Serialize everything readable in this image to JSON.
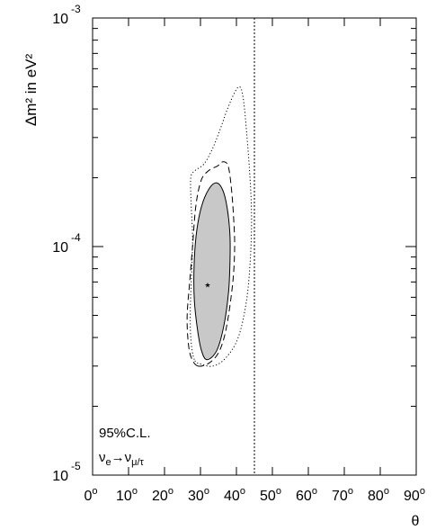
{
  "chart_data": {
    "type": "line",
    "title": "",
    "xlabel": "θ",
    "ylabel": "Δm² in eV²",
    "x_unit_symbol": "o",
    "xlim": [
      0,
      90
    ],
    "ylim": [
      1e-05,
      0.001
    ],
    "y_scale": "log",
    "grid": false,
    "x_ticks": [
      0,
      10,
      20,
      30,
      40,
      50,
      60,
      70,
      80,
      90
    ],
    "y_ticks": [
      {
        "value": 1e-05,
        "base": "10",
        "exponent": "-5"
      },
      {
        "value": 0.0001,
        "base": "10",
        "exponent": "-4"
      },
      {
        "value": 0.001,
        "base": "10",
        "exponent": "-3"
      }
    ],
    "annotations": {
      "confidence": "95%C.L.",
      "channel": {
        "nu": "ν",
        "from_sub": "e",
        "arrow": "→",
        "to_sub": "μ/τ"
      }
    },
    "best_fit": {
      "x": 32,
      "y": 6.8e-05,
      "symbol": "★"
    },
    "vertical_line": {
      "x": 45,
      "style": "dotted"
    },
    "series": [
      {
        "style": "solid-filled",
        "fill": "#c8c8c8",
        "points": [
          [
            31.8,
            3.2e-05
          ],
          [
            34.5,
            3.5e-05
          ],
          [
            36.5,
            4.5e-05
          ],
          [
            37.8,
            6.3e-05
          ],
          [
            38.2,
            8.5e-05
          ],
          [
            38.2,
            0.000112
          ],
          [
            37.5,
            0.000145
          ],
          [
            36.3,
            0.000175
          ],
          [
            34.5,
            0.00019
          ],
          [
            32.3,
            0.000178
          ],
          [
            30.2,
            0.000148
          ],
          [
            28.8,
            0.000112
          ],
          [
            28.2,
            8e-05
          ],
          [
            28.3,
            5.8e-05
          ],
          [
            29.2,
            4.3e-05
          ],
          [
            30.3,
            3.5e-05
          ]
        ]
      },
      {
        "style": "dashed",
        "points": [
          [
            29.3,
            3e-05
          ],
          [
            27.5,
            3.25e-05
          ],
          [
            26.6,
            3.8e-05
          ],
          [
            26.3,
            5e-05
          ],
          [
            27.0,
            7e-05
          ],
          [
            27.8,
            0.0001
          ],
          [
            28.7,
            0.00015
          ],
          [
            30.2,
            0.000195
          ],
          [
            32.3,
            0.000215
          ],
          [
            34.7,
            0.000225
          ],
          [
            36.3,
            0.000235
          ],
          [
            37.7,
            0.000225
          ],
          [
            38.6,
            0.00018
          ],
          [
            39.2,
            0.000135
          ],
          [
            39.5,
            0.0001
          ],
          [
            39.0,
            7e-05
          ],
          [
            37.3,
            4.5e-05
          ],
          [
            35.3,
            3.5e-05
          ],
          [
            32.5,
            3.1e-05
          ]
        ]
      },
      {
        "style": "dotted",
        "points": [
          [
            28.3,
            3.2e-05
          ],
          [
            27.3,
            4e-05
          ],
          [
            27.2,
            5.5e-05
          ],
          [
            27.6,
            8e-05
          ],
          [
            27.8,
            0.00011
          ],
          [
            27.4,
            0.000155
          ],
          [
            27.3,
            0.0002
          ],
          [
            28.5,
            0.000215
          ],
          [
            31.0,
            0.00023
          ],
          [
            33.2,
            0.000265
          ],
          [
            35.3,
            0.00032
          ],
          [
            37.5,
            0.0004
          ],
          [
            39.6,
            0.000475
          ],
          [
            40.9,
            0.0005
          ],
          [
            41.8,
            0.000455
          ],
          [
            42.6,
            0.00035
          ],
          [
            43.6,
            0.00022
          ],
          [
            44.2,
            0.00014
          ],
          [
            43.9,
            9e-05
          ],
          [
            42.8,
            5.8e-05
          ],
          [
            40.5,
            4e-05
          ],
          [
            37.0,
            3.25e-05
          ],
          [
            33.5,
            3e-05
          ],
          [
            30.5,
            3.05e-05
          ]
        ]
      }
    ]
  }
}
